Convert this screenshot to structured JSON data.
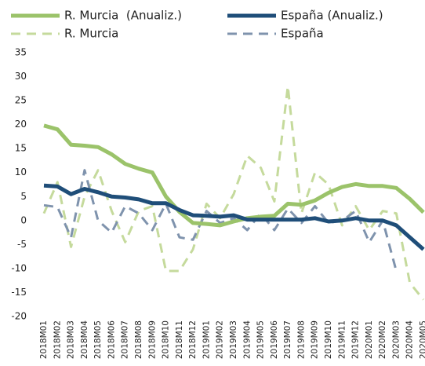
{
  "chart_data": {
    "type": "line",
    "categories": [
      "2018M01",
      "2018M02",
      "2018M03",
      "2018M04",
      "2018M05",
      "2018M06",
      "2018M07",
      "2018M08",
      "2018M09",
      "2018M10",
      "2018M11",
      "2018M12",
      "2019M01",
      "2019M02",
      "2019M03",
      "2019M04",
      "2019M05",
      "2019M06",
      "2019M07",
      "2019M08",
      "2019M09",
      "2019M10",
      "2019M11",
      "2019M12",
      "2020M01",
      "2020M02",
      "2020M03",
      "2020M04",
      "2020M05"
    ],
    "series": [
      {
        "name": "R. Murcia  (Anualiz.)",
        "color": "#9bc36a",
        "dash": false,
        "values": [
          19.8,
          19,
          15.8,
          15.6,
          15.3,
          13.8,
          11.8,
          10.8,
          10,
          5,
          1.8,
          -0.5,
          -0.7,
          -1,
          -0.2,
          0.5,
          0.8,
          1,
          3.5,
          3.3,
          4.2,
          5.8,
          7,
          7.6,
          7.2,
          7.2,
          6.8,
          4.5,
          1.7
        ]
      },
      {
        "name": "España (Anualiz.)",
        "color": "#1f4e79",
        "dash": false,
        "values": [
          7.3,
          7.1,
          5.5,
          6.6,
          5.9,
          5,
          4.8,
          4.4,
          3.6,
          3.6,
          2.2,
          1.1,
          1,
          0.8,
          1.1,
          0.2,
          0.2,
          0.2,
          0.2,
          0.2,
          0.5,
          -0.2,
          0,
          0.5,
          0,
          0,
          -1,
          -3.5,
          -6
        ]
      },
      {
        "name": "R. Murcia",
        "color": "#c5da9c",
        "dash": true,
        "values": [
          1.5,
          8,
          -5.5,
          5,
          10.5,
          2,
          -4.5,
          2,
          3,
          -10.5,
          -10.5,
          -6,
          3.5,
          0.5,
          5.5,
          13.5,
          11,
          4,
          28,
          1.5,
          10,
          7.5,
          -1,
          3,
          -2,
          2,
          1.5,
          -13,
          -16.5
        ]
      },
      {
        "name": "España",
        "color": "#7f93ad",
        "dash": true,
        "values": [
          3.2,
          2.8,
          -3.5,
          10.5,
          0,
          -2.5,
          3,
          1.5,
          -2,
          3.5,
          -3.5,
          -4,
          2,
          -0.5,
          0.5,
          -2,
          1.5,
          -2,
          2.5,
          -0.5,
          3,
          -0.5,
          0,
          2,
          -4.5,
          0,
          -10.5,
          null,
          null
        ]
      }
    ],
    "ylim": [
      -20,
      35
    ],
    "yticks": [
      -20,
      -15,
      -10,
      -5,
      0,
      5,
      10,
      15,
      20,
      25,
      30,
      35
    ],
    "grid": false
  }
}
